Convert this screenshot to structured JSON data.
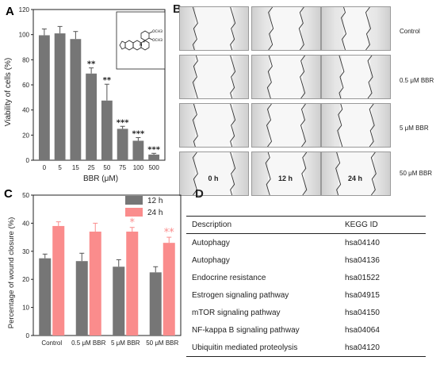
{
  "panels": {
    "a": "A",
    "b": "B",
    "c": "C",
    "d": "D"
  },
  "chart_data": [
    {
      "type": "bar",
      "panel": "A",
      "categories": [
        "0",
        "5",
        "15",
        "25",
        "50",
        "75",
        "100",
        "500"
      ],
      "values": [
        99.5,
        101,
        96.5,
        69,
        47.5,
        25,
        15.5,
        4.5
      ],
      "errors": [
        5,
        5.5,
        6,
        4.5,
        13,
        2,
        2.5,
        1
      ],
      "annotations": [
        "",
        "",
        "",
        "**",
        "**",
        "***",
        "***",
        "***"
      ],
      "xlabel": "BBR (μM)",
      "ylabel": "Viability of cells (%)",
      "ylim": [
        0,
        120
      ],
      "yticks": [
        0,
        20,
        40,
        60,
        80,
        100,
        120
      ],
      "color": "#767676",
      "inset": {
        "substituent_top": "OCH3",
        "substituent_bottom": "OCH3",
        "positive_charge": "+",
        "ring_atom": "N"
      }
    },
    {
      "type": "bar",
      "panel": "C",
      "categories": [
        "Control",
        "0.5 μM BBR",
        "5 μM BBR",
        "50 μM BBR"
      ],
      "series": [
        {
          "name": "12 h",
          "values": [
            27.5,
            26.5,
            24.5,
            22.5
          ],
          "errors": [
            1.5,
            2.8,
            2.5,
            2
          ],
          "color": "#767676",
          "annotations": [
            "",
            "",
            "",
            ""
          ]
        },
        {
          "name": "24 h",
          "values": [
            39,
            37,
            37,
            33
          ],
          "errors": [
            1.5,
            3,
            1.5,
            2
          ],
          "color": "#fa8c8c",
          "annotations": [
            "",
            "",
            "*",
            "**"
          ]
        }
      ],
      "ylabel": "Percentage of wound closure (%)",
      "ylim": [
        0,
        50
      ],
      "yticks": [
        0,
        10,
        20,
        30,
        40,
        50
      ],
      "legend_position": "top-right"
    }
  ],
  "panel_b": {
    "row_labels": [
      "Control",
      "0.5 μM BBR",
      "5 μM BBR",
      "50 μM BBR"
    ],
    "col_labels": [
      "0 h",
      "12 h",
      "24 h"
    ]
  },
  "table": {
    "headers": [
      "Description",
      "KEGG ID"
    ],
    "rows": [
      [
        "Autophagy",
        "hsa04140"
      ],
      [
        "Autophagy",
        "hsa04136"
      ],
      [
        "Endocrine resistance",
        "hsa01522"
      ],
      [
        "Estrogen signaling pathway",
        "hsa04915"
      ],
      [
        "mTOR signaling pathway",
        "hsa04150"
      ],
      [
        "NF-kappa B signaling pathway",
        "hsa04064"
      ],
      [
        "Ubiquitin mediated proteolysis",
        "hsa04120"
      ]
    ]
  }
}
